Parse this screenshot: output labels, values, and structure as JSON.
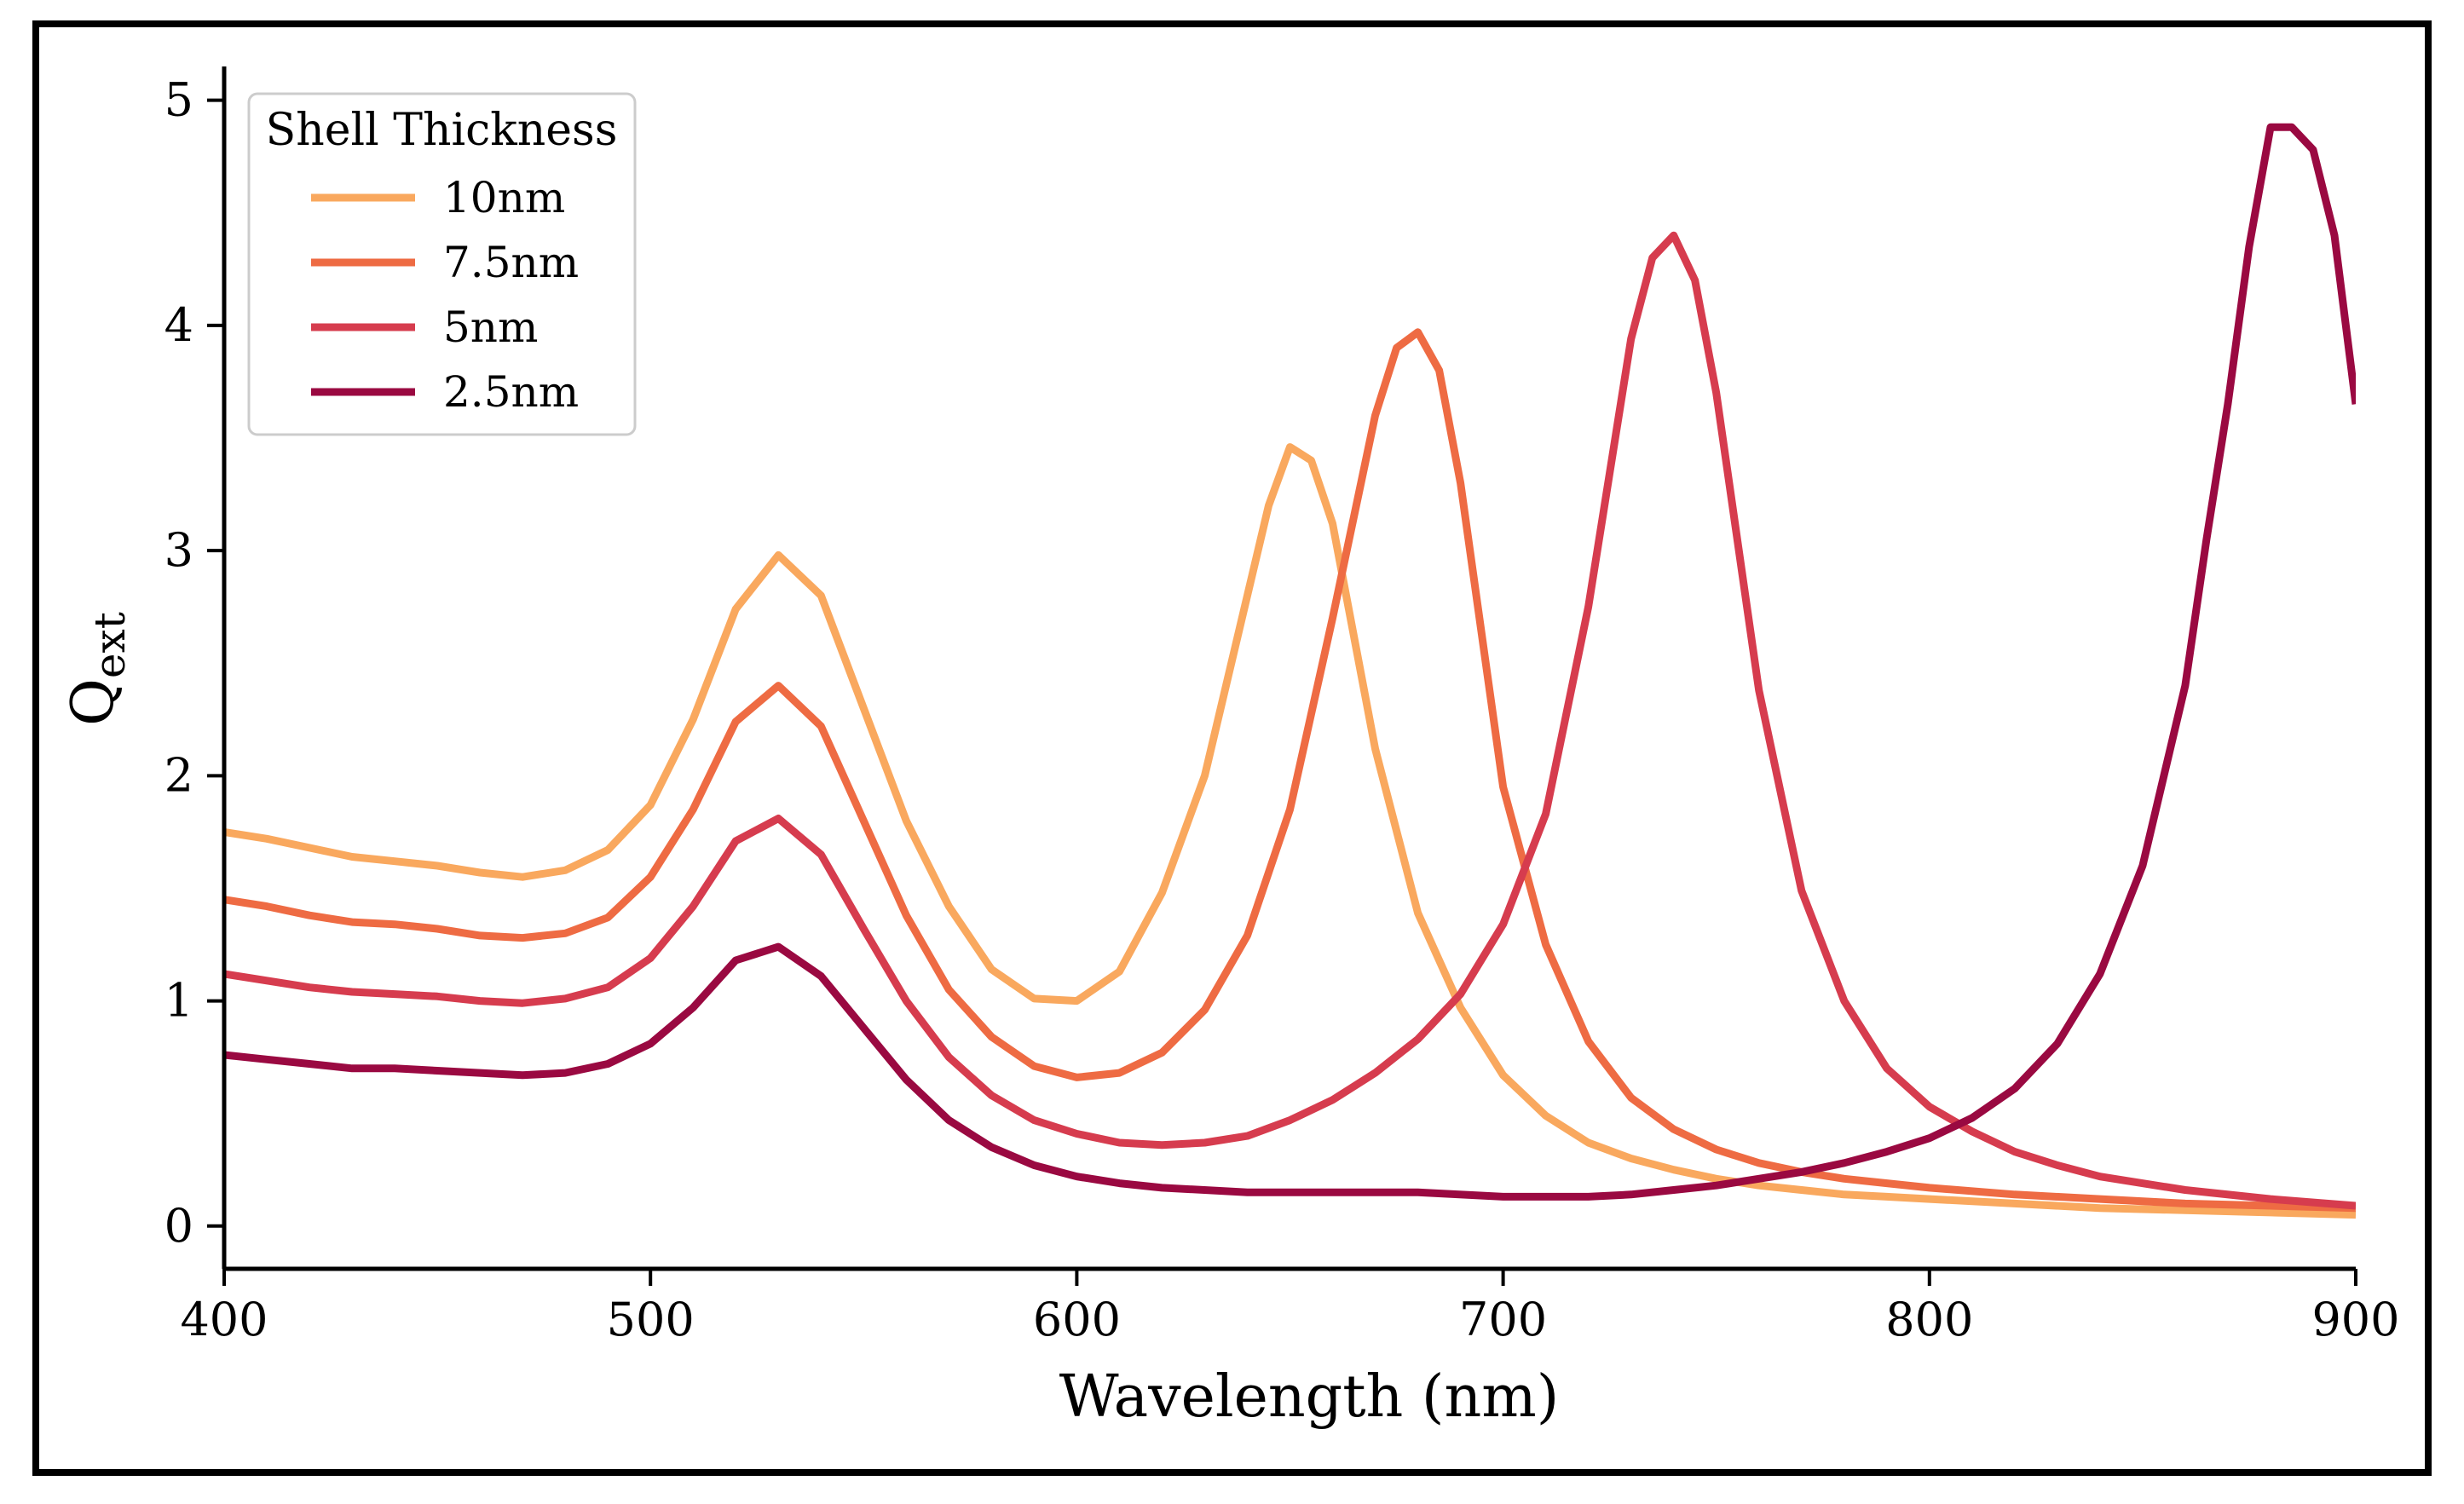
{
  "chart_data": {
    "type": "line",
    "title": "",
    "xlabel": "Wavelength (nm)",
    "ylabel": "Q",
    "ylabel_sub": "ext",
    "xlim": [
      400,
      900
    ],
    "ylim": [
      -0.19,
      5.15
    ],
    "xticks": [
      400,
      500,
      600,
      700,
      800,
      900
    ],
    "yticks": [
      0,
      1,
      2,
      3,
      4,
      5
    ],
    "grid": false,
    "legend_title": "Shell Thickness",
    "legend_position": "top-left",
    "series": [
      {
        "name": "10nm",
        "color": "#f9a85e",
        "x": [
          400,
          410,
          420,
          430,
          440,
          450,
          460,
          470,
          480,
          490,
          500,
          510,
          520,
          530,
          540,
          550,
          560,
          570,
          580,
          590,
          600,
          610,
          620,
          630,
          640,
          645,
          650,
          655,
          660,
          670,
          680,
          690,
          700,
          710,
          720,
          730,
          740,
          750,
          760,
          770,
          780,
          790,
          800,
          820,
          840,
          860,
          880,
          900
        ],
        "y": [
          1.75,
          1.72,
          1.68,
          1.64,
          1.62,
          1.6,
          1.57,
          1.55,
          1.58,
          1.67,
          1.87,
          2.25,
          2.74,
          2.98,
          2.8,
          2.3,
          1.8,
          1.42,
          1.14,
          1.01,
          1.0,
          1.13,
          1.48,
          2.0,
          2.8,
          3.2,
          3.46,
          3.4,
          3.12,
          2.12,
          1.39,
          0.97,
          0.67,
          0.49,
          0.37,
          0.3,
          0.25,
          0.21,
          0.18,
          0.16,
          0.14,
          0.13,
          0.12,
          0.1,
          0.08,
          0.07,
          0.06,
          0.05
        ]
      },
      {
        "name": "7.5nm",
        "color": "#ee6b43",
        "x": [
          400,
          410,
          420,
          430,
          440,
          450,
          460,
          470,
          480,
          490,
          500,
          510,
          520,
          530,
          540,
          550,
          560,
          570,
          580,
          590,
          600,
          610,
          620,
          630,
          640,
          650,
          660,
          670,
          675,
          680,
          685,
          690,
          700,
          710,
          720,
          730,
          740,
          750,
          760,
          770,
          780,
          790,
          800,
          820,
          840,
          860,
          880,
          900
        ],
        "y": [
          1.45,
          1.42,
          1.38,
          1.35,
          1.34,
          1.32,
          1.29,
          1.28,
          1.3,
          1.37,
          1.55,
          1.85,
          2.24,
          2.4,
          2.22,
          1.8,
          1.38,
          1.05,
          0.84,
          0.71,
          0.66,
          0.68,
          0.77,
          0.96,
          1.29,
          1.85,
          2.7,
          3.6,
          3.9,
          3.97,
          3.8,
          3.3,
          1.95,
          1.25,
          0.82,
          0.57,
          0.43,
          0.34,
          0.28,
          0.24,
          0.21,
          0.19,
          0.17,
          0.14,
          0.12,
          0.1,
          0.09,
          0.08
        ]
      },
      {
        "name": "5nm",
        "color": "#d63c4e",
        "x": [
          400,
          410,
          420,
          430,
          440,
          450,
          460,
          470,
          480,
          490,
          500,
          510,
          520,
          530,
          540,
          550,
          560,
          570,
          580,
          590,
          600,
          610,
          620,
          630,
          640,
          650,
          660,
          670,
          680,
          690,
          700,
          710,
          720,
          730,
          735,
          740,
          745,
          750,
          760,
          770,
          780,
          790,
          800,
          810,
          820,
          830,
          840,
          860,
          880,
          900
        ],
        "y": [
          1.12,
          1.09,
          1.06,
          1.04,
          1.03,
          1.02,
          1.0,
          0.99,
          1.01,
          1.06,
          1.19,
          1.42,
          1.71,
          1.81,
          1.65,
          1.32,
          1.0,
          0.75,
          0.58,
          0.47,
          0.41,
          0.37,
          0.36,
          0.37,
          0.4,
          0.47,
          0.56,
          0.68,
          0.83,
          1.03,
          1.34,
          1.83,
          2.75,
          3.94,
          4.3,
          4.4,
          4.2,
          3.7,
          2.38,
          1.49,
          1.0,
          0.7,
          0.53,
          0.42,
          0.33,
          0.27,
          0.22,
          0.16,
          0.12,
          0.09
        ]
      },
      {
        "name": "2.5nm",
        "color": "#9a0941",
        "x": [
          400,
          410,
          420,
          430,
          440,
          450,
          460,
          470,
          480,
          490,
          500,
          510,
          520,
          530,
          540,
          550,
          560,
          570,
          580,
          590,
          600,
          610,
          620,
          640,
          660,
          670,
          680,
          700,
          710,
          720,
          730,
          740,
          750,
          760,
          770,
          780,
          790,
          800,
          810,
          820,
          830,
          840,
          850,
          855,
          860,
          865,
          870,
          875,
          880,
          885,
          890,
          895,
          900
        ],
        "y": [
          0.76,
          0.74,
          0.72,
          0.7,
          0.7,
          0.69,
          0.68,
          0.67,
          0.68,
          0.72,
          0.81,
          0.97,
          1.18,
          1.24,
          1.11,
          0.88,
          0.65,
          0.47,
          0.35,
          0.27,
          0.22,
          0.19,
          0.17,
          0.15,
          0.15,
          0.15,
          0.15,
          0.13,
          0.13,
          0.13,
          0.14,
          0.16,
          0.18,
          0.21,
          0.24,
          0.28,
          0.33,
          0.39,
          0.48,
          0.61,
          0.81,
          1.12,
          1.6,
          2.0,
          2.4,
          3.05,
          3.65,
          4.35,
          4.88,
          4.88,
          4.78,
          4.4,
          3.65
        ]
      }
    ]
  }
}
